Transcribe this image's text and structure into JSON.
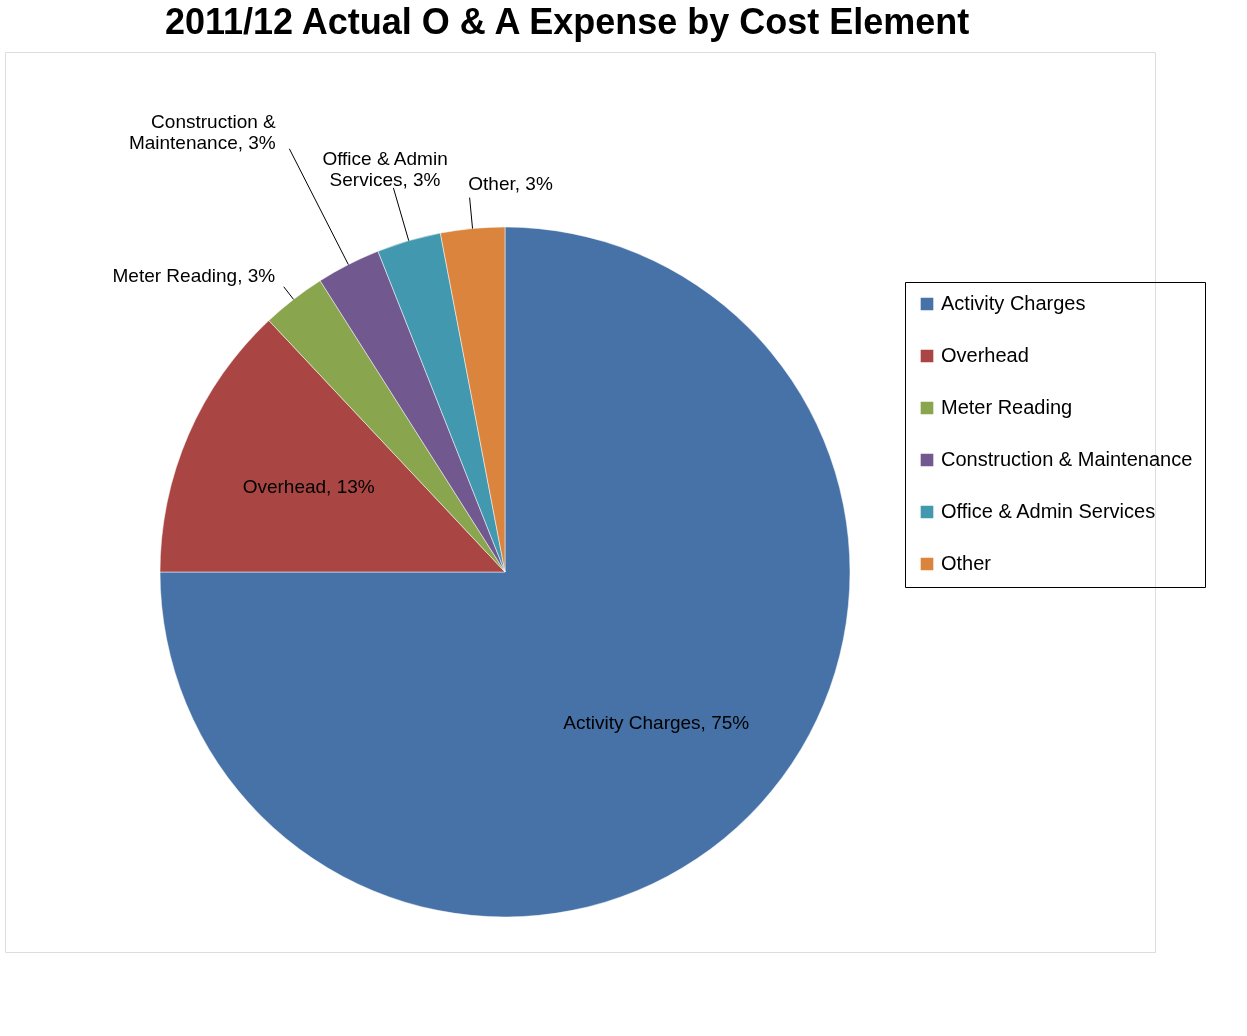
{
  "chart_data": {
    "type": "pie",
    "title": "2011/12 Actual O & A Expense by Cost Element",
    "categories": [
      "Activity Charges",
      "Overhead",
      "Meter Reading",
      "Construction & Maintenance",
      "Office & Admin Services",
      "Other"
    ],
    "values": [
      75,
      13,
      3,
      3,
      3,
      3
    ],
    "colors": [
      "#4672a8",
      "#a94643",
      "#89a54e",
      "#71588f",
      "#4198af",
      "#db843d"
    ],
    "value_labels": [
      "Activity Charges, 75%",
      "Overhead, 13%",
      "Meter Reading, 3%",
      "Construction &\nMaintenance, 3%",
      "Office & Admin\nServices, 3%",
      "Other, 3%"
    ],
    "legend": "right"
  }
}
